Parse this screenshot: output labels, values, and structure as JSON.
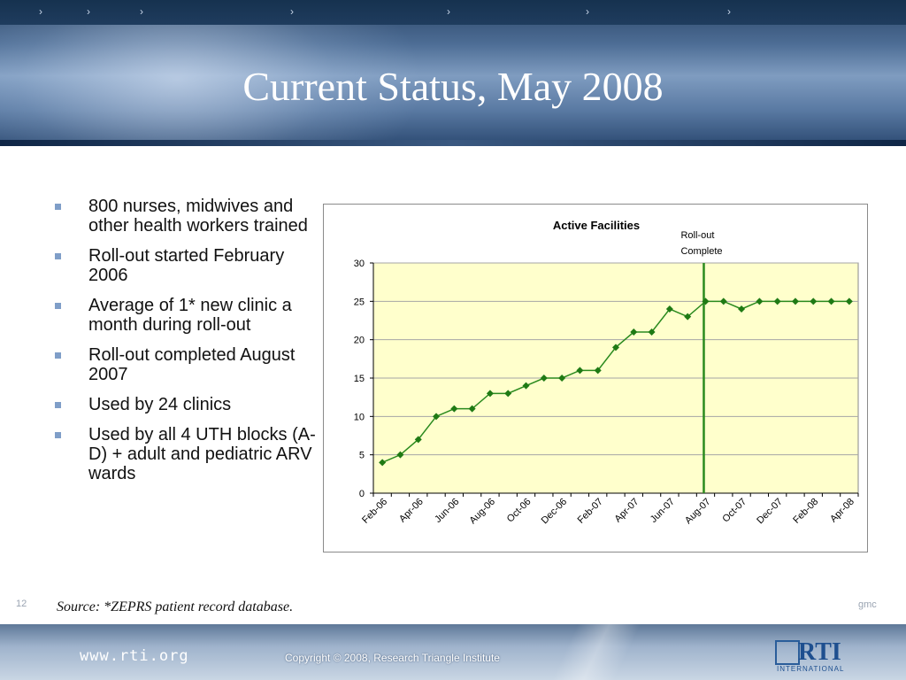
{
  "slide": {
    "title": "Current Status, May 2008",
    "bullets": [
      "800 nurses, midwives and other health workers trained",
      "Roll-out started February 2006",
      "Average of 1* new clinic a month during roll-out",
      "Roll-out completed August 2007",
      "Used by 24 clinics",
      "Used by all 4 UTH blocks (A-D) + adult and pediatric ARV wards"
    ],
    "source": "Source: *ZEPRS patient record database.",
    "slide_number": "12",
    "author_tag": "gmc"
  },
  "footer": {
    "url": "www.rti.org",
    "copyright": "Copyright © 2008, Research Triangle Institute",
    "logo_text": "RTI",
    "logo_subtext": "INTERNATIONAL"
  },
  "nav": {
    "chevron_glyph": "›",
    "count": 7
  },
  "colors": {
    "series": "#2a8a1e",
    "marker": "#1f7a14",
    "plot_bg": "#ffffcc",
    "rollout_line": "#2a8a1e",
    "bullet": "#7f9ec8"
  },
  "chart_data": {
    "type": "line",
    "title": "Active Facilities",
    "xlabel": "",
    "ylabel": "",
    "ylim": [
      0,
      30
    ],
    "yticks": [
      0,
      5,
      10,
      15,
      20,
      25,
      30
    ],
    "grid": true,
    "legend": "none",
    "x": [
      "Feb-06",
      "Mar-06",
      "Apr-06",
      "May-06",
      "Jun-06",
      "Jul-06",
      "Aug-06",
      "Sep-06",
      "Oct-06",
      "Nov-06",
      "Dec-06",
      "Jan-07",
      "Feb-07",
      "Mar-07",
      "Apr-07",
      "May-07",
      "Jun-07",
      "Jul-07",
      "Aug-07",
      "Sep-07",
      "Oct-07",
      "Nov-07",
      "Dec-07",
      "Jan-08",
      "Feb-08",
      "Mar-08",
      "Apr-08"
    ],
    "xtick_labels": [
      "Feb-06",
      "Apr-06",
      "Jun-06",
      "Aug-06",
      "Oct-06",
      "Dec-06",
      "Feb-07",
      "Apr-07",
      "Jun-07",
      "Aug-07",
      "Oct-07",
      "Dec-07",
      "Feb-08",
      "Apr-08"
    ],
    "series": [
      {
        "values": [
          4,
          5,
          7,
          10,
          11,
          11,
          13,
          13,
          14,
          15,
          15,
          16,
          16,
          19,
          21,
          21,
          24,
          23,
          25,
          25,
          24,
          25,
          25,
          25,
          25,
          25,
          25
        ]
      }
    ],
    "annotation": {
      "text_line1": "Roll-out",
      "text_line2": "Complete",
      "at": "Aug-07"
    }
  }
}
